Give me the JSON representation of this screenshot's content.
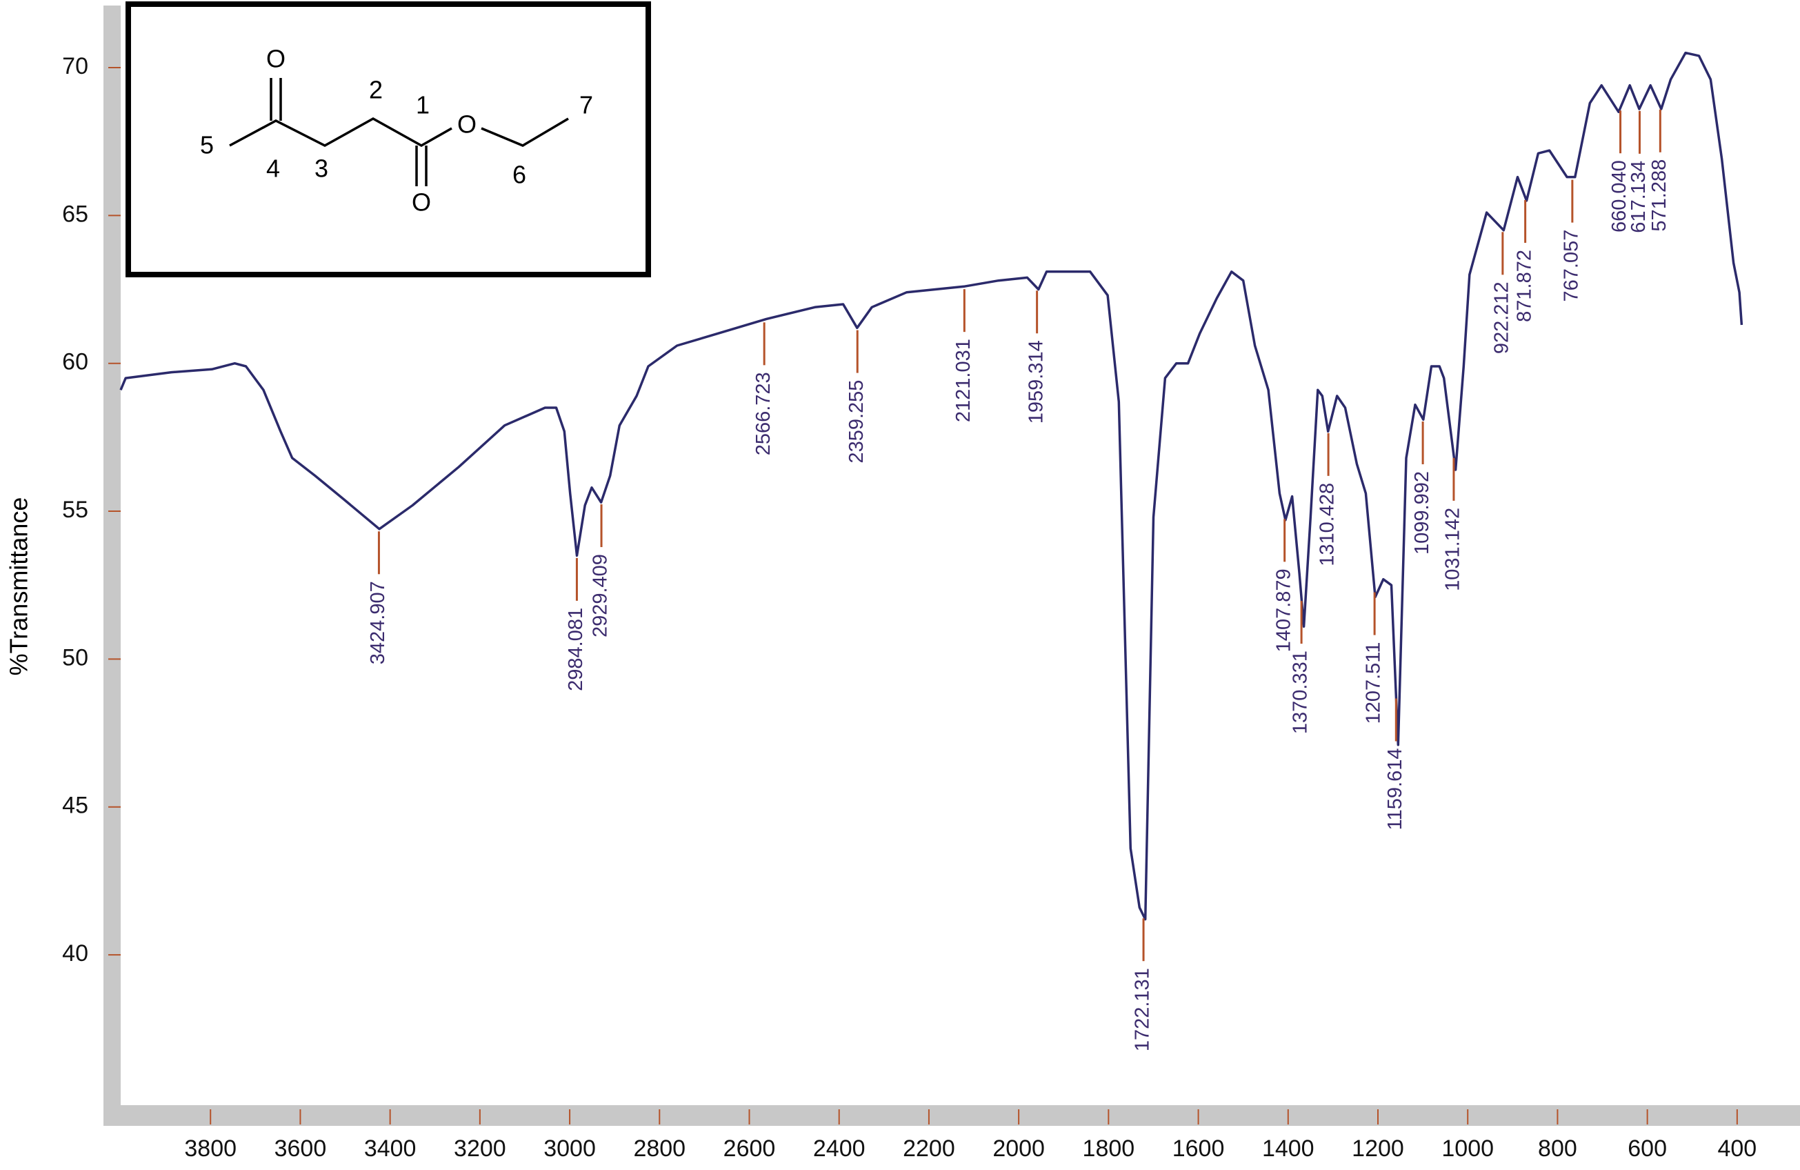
{
  "chart_data": {
    "type": "line",
    "ylabel": "%Transmittance",
    "xlim": [
      4000,
      260
    ],
    "ylim": [
      34.8,
      72.1
    ],
    "xticks": [
      3800,
      3600,
      3400,
      3200,
      3000,
      2800,
      2600,
      2400,
      2200,
      2000,
      1800,
      1600,
      1400,
      1200,
      1000,
      800,
      600,
      400
    ],
    "yticks": [
      40,
      45,
      50,
      55,
      60,
      65,
      70
    ],
    "color": "#2b2a6b",
    "marker_color": "#b5532a",
    "label_color": "#3b2b6e",
    "x": [
      4000,
      3989,
      3887,
      3797,
      3746,
      3721,
      3682,
      3644,
      3618,
      3567,
      3503,
      3424,
      3350,
      3247,
      3145,
      3055,
      3030,
      3012,
      2999,
      2984,
      2966,
      2951,
      2930,
      2910,
      2889,
      2851,
      2825,
      2761,
      2672,
      2562,
      2454,
      2391,
      2360,
      2327,
      2250,
      2122,
      2045,
      1981,
      1956,
      1938,
      1841,
      1802,
      1777,
      1751,
      1731,
      1718,
      1700,
      1674,
      1649,
      1623,
      1597,
      1559,
      1526,
      1500,
      1474,
      1444,
      1419,
      1406,
      1391,
      1375,
      1365,
      1350,
      1334,
      1324,
      1311,
      1291,
      1273,
      1247,
      1227,
      1206,
      1188,
      1170,
      1155,
      1137,
      1117,
      1099,
      1081,
      1063,
      1053,
      1027,
      1009,
      996,
      958,
      920,
      889,
      869,
      843,
      818,
      779,
      761,
      728,
      702,
      664,
      639,
      618,
      593,
      569,
      548,
      515,
      485,
      459,
      434,
      408,
      395,
      390
    ],
    "values": [
      59.1,
      59.5,
      59.7,
      59.8,
      60.0,
      59.9,
      59.1,
      57.7,
      56.8,
      56.2,
      55.4,
      54.4,
      55.2,
      56.5,
      57.9,
      58.5,
      58.5,
      57.7,
      55.6,
      53.5,
      55.2,
      55.8,
      55.3,
      56.2,
      57.9,
      58.9,
      59.9,
      60.6,
      61.0,
      61.5,
      61.9,
      62.0,
      61.2,
      61.9,
      62.4,
      62.6,
      62.8,
      62.9,
      62.5,
      63.1,
      63.1,
      62.3,
      58.7,
      43.6,
      41.6,
      41.2,
      54.8,
      59.5,
      60.0,
      60.0,
      61.0,
      62.2,
      63.1,
      62.8,
      60.6,
      59.1,
      55.6,
      54.7,
      55.5,
      52.9,
      51.1,
      54.8,
      59.1,
      58.9,
      57.7,
      58.9,
      58.5,
      56.6,
      55.6,
      52.1,
      52.7,
      52.5,
      47.1,
      56.8,
      58.6,
      58.1,
      59.9,
      59.9,
      59.5,
      56.4,
      59.9,
      63.0,
      65.1,
      64.5,
      66.3,
      65.5,
      67.1,
      67.2,
      66.3,
      66.3,
      68.8,
      69.4,
      68.5,
      69.4,
      68.6,
      69.4,
      68.6,
      69.6,
      70.5,
      70.4,
      69.6,
      66.9,
      63.4,
      62.4,
      61.3
    ],
    "peaks": [
      3424.907,
      2984.081,
      2929.409,
      2566.723,
      2359.255,
      2121.031,
      1959.314,
      1722.131,
      1407.879,
      1370.331,
      1310.428,
      1207.511,
      1159.614,
      1099.992,
      1031.142,
      922.212,
      871.872,
      767.057,
      660.04,
      617.134,
      571.288
    ],
    "peak_labels": [
      "3424.907",
      "2984.081",
      "2929.409",
      "2566.723",
      "2359.255",
      "2121.031",
      "1959.314",
      "1722.131",
      "1407.879",
      "1370.331",
      "1310.428",
      "1207.511",
      "1159.614",
      "1099.992",
      "1031.142",
      "922.212",
      "871.872",
      "767.057",
      "660.040",
      "617.134",
      "571.288"
    ]
  },
  "inset": {
    "labels": [
      "O",
      "5",
      "4",
      "3",
      "2",
      "1",
      "O",
      "6",
      "7",
      "O"
    ]
  }
}
